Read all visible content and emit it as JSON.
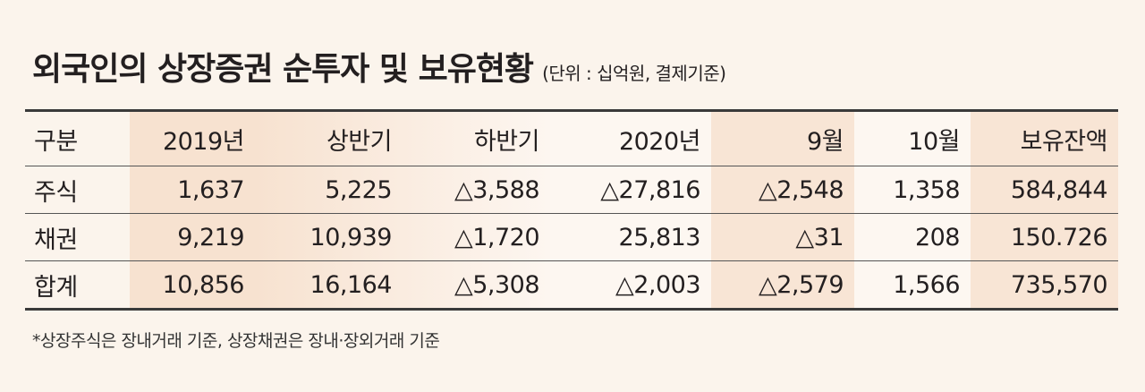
{
  "header": {
    "title": "외국인의 상장증권 순투자 및 보유현황",
    "unit": "(단위 : 십억원, 결제기준)"
  },
  "table": {
    "columns": [
      "구분",
      "2019년",
      "상반기",
      "하반기",
      "2020년",
      "9월",
      "10월",
      "보유잔액"
    ],
    "rows": [
      [
        "주식",
        "1,637",
        "5,225",
        "△3,588",
        "△27,816",
        "△2,548",
        "1,358",
        "584,844"
      ],
      [
        "채권",
        "9,219",
        "10,939",
        "△1,720",
        "25,813",
        "△31",
        "208",
        "150.726"
      ],
      [
        "합계",
        "10,856",
        "16,164",
        "△5,308",
        "△2,003",
        "△2,579",
        "1,566",
        "735,570"
      ]
    ]
  },
  "footnote": "*상장주식은 장내거래 기준, 상장채권은 장내·장외거래 기준"
}
